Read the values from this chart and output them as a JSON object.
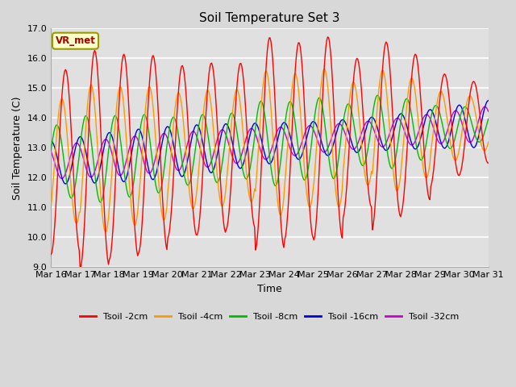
{
  "title": "Soil Temperature Set 3",
  "xlabel": "Time",
  "ylabel": "Soil Temperature (C)",
  "ylim": [
    9.0,
    17.0
  ],
  "yticks": [
    9.0,
    10.0,
    11.0,
    12.0,
    13.0,
    14.0,
    15.0,
    16.0,
    17.0
  ],
  "xtick_labels": [
    "Mar 16",
    "Mar 17",
    "Mar 18",
    "Mar 19",
    "Mar 20",
    "Mar 21",
    "Mar 22",
    "Mar 23",
    "Mar 24",
    "Mar 25",
    "Mar 26",
    "Mar 27",
    "Mar 28",
    "Mar 29",
    "Mar 30",
    "Mar 31"
  ],
  "series_colors": [
    "#ff0000",
    "#ff9900",
    "#00bb00",
    "#0000dd",
    "#cc00cc"
  ],
  "series_labels": [
    "Tsoil -2cm",
    "Tsoil -4cm",
    "Tsoil -8cm",
    "Tsoil -16cm",
    "Tsoil -32cm"
  ],
  "background_color": "#e8e8e8",
  "plot_bg_color": "#e0e0e0",
  "annotation_text": "VR_met",
  "n_points": 480
}
